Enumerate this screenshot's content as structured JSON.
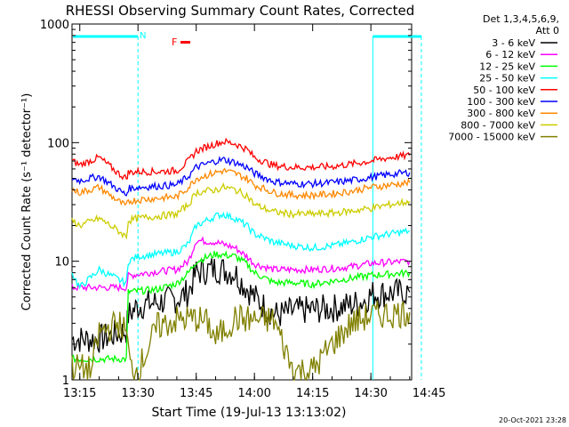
{
  "chart_data": {
    "type": "line",
    "title": "RHESSI Observing Summary Count Rates, Corrected",
    "xlabel": "Start Time (19-Jul-13 13:13:02)",
    "ylabel": "Corrected Count Rate (s⁻¹ detector⁻¹)",
    "yscale": "log",
    "ylim": [
      1,
      1000
    ],
    "xlim_minutes": [
      13.0,
      100.5
    ],
    "xticks": [
      {
        "m": 15,
        "label": "13:15"
      },
      {
        "m": 30,
        "label": "13:30"
      },
      {
        "m": 45,
        "label": "13:45"
      },
      {
        "m": 60,
        "label": "14:00"
      },
      {
        "m": 75,
        "label": "14:15"
      },
      {
        "m": 90,
        "label": "14:30"
      },
      {
        "m": 105,
        "label": "14:45"
      }
    ],
    "yticks": [
      {
        "v": 1,
        "label": "1"
      },
      {
        "v": 10,
        "label": "10"
      },
      {
        "v": 100,
        "label": "100"
      },
      {
        "v": 1000,
        "label": "1000"
      }
    ],
    "legend_header": [
      "Det 1,3,4,5,6,9,",
      "Att 0"
    ],
    "legend_position": "right",
    "series": [
      {
        "name": "3 - 6 keV",
        "color": "#000000",
        "x": [
          13,
          20,
          27,
          27.5,
          30,
          35,
          40,
          43,
          45,
          50,
          55,
          57,
          60,
          63,
          66,
          70,
          75,
          80,
          85,
          88,
          90,
          90.5,
          95,
          100
        ],
        "y": [
          2.2,
          2.2,
          2.6,
          3.5,
          4.2,
          4.5,
          4.8,
          5.5,
          8,
          8.7,
          8,
          6.5,
          5,
          4,
          3.5,
          3.8,
          3.9,
          4.0,
          4.3,
          4.6,
          5.2,
          5.3,
          5.4,
          5.5
        ]
      },
      {
        "name": "6 - 12 keV",
        "color": "#ff00ff",
        "x": [
          13,
          27,
          27.5,
          30,
          35,
          40,
          43,
          45,
          50,
          55,
          58,
          60,
          65,
          70,
          75,
          80,
          85,
          90,
          95,
          100
        ],
        "y": [
          6,
          6,
          7.5,
          7.8,
          8.2,
          8.5,
          10,
          15,
          14.5,
          13,
          11,
          9.5,
          8.5,
          8.5,
          8.5,
          8.7,
          9,
          9.6,
          9.8,
          10
        ]
      },
      {
        "name": "12 - 25 keV",
        "color": "#00ff00",
        "x": [
          13,
          20,
          27,
          27.5,
          30,
          35,
          40,
          43,
          45,
          50,
          55,
          58,
          60,
          65,
          70,
          75,
          80,
          85,
          90,
          95,
          100
        ],
        "y": [
          1.5,
          1.5,
          1.5,
          5.5,
          5.6,
          5.8,
          6.5,
          8,
          10,
          11.5,
          11,
          9.5,
          8,
          6.6,
          6.6,
          6.4,
          6.8,
          7.2,
          7.6,
          7.8,
          8
        ]
      },
      {
        "name": "25 - 50 keV",
        "color": "#00ffff",
        "x": [
          13,
          15,
          20,
          25,
          27,
          27.5,
          30,
          35,
          40,
          43,
          45,
          50,
          52,
          55,
          58,
          60,
          65,
          70,
          75,
          80,
          85,
          90,
          95,
          100
        ],
        "y": [
          8,
          6,
          8.5,
          7,
          6.5,
          10,
          11,
          11.5,
          12,
          14,
          20,
          24,
          25,
          23,
          20,
          17,
          14.5,
          13.5,
          13,
          13.5,
          14.5,
          16,
          17,
          18
        ]
      },
      {
        "name": "50 - 100 keV",
        "color": "#ff0000",
        "x": [
          13,
          15,
          20,
          25,
          27,
          27.5,
          30,
          35,
          40,
          43,
          45,
          50,
          52,
          55,
          58,
          60,
          65,
          70,
          75,
          80,
          85,
          90,
          95,
          100
        ],
        "y": [
          70,
          65,
          75,
          55,
          50,
          56,
          57,
          57,
          58,
          70,
          85,
          98,
          102,
          98,
          88,
          75,
          64,
          62,
          62,
          63,
          66,
          70,
          75,
          78
        ]
      },
      {
        "name": "100 - 300 keV",
        "color": "#0000ff",
        "x": [
          13,
          15,
          20,
          25,
          27,
          27.5,
          30,
          35,
          40,
          43,
          45,
          50,
          52,
          55,
          58,
          60,
          65,
          70,
          75,
          80,
          85,
          90,
          95,
          100
        ],
        "y": [
          50,
          48,
          52,
          40,
          36,
          41,
          42,
          43,
          44,
          52,
          62,
          70,
          72,
          68,
          62,
          55,
          47,
          45,
          45,
          46,
          48,
          51,
          54,
          56
        ]
      },
      {
        "name": "300 - 800 keV",
        "color": "#ff8800",
        "x": [
          13,
          15,
          20,
          25,
          27,
          27.5,
          30,
          35,
          40,
          43,
          45,
          50,
          52,
          55,
          58,
          60,
          65,
          70,
          75,
          80,
          85,
          90,
          95,
          100
        ],
        "y": [
          40,
          38,
          42,
          32,
          29,
          32,
          33,
          34,
          35,
          42,
          50,
          56,
          58,
          55,
          50,
          44,
          38,
          36,
          36,
          37,
          39,
          42,
          44,
          46
        ]
      },
      {
        "name": "800 - 7000 keV",
        "color": "#cccc00",
        "x": [
          13,
          15,
          20,
          25,
          27,
          27.5,
          30,
          35,
          40,
          43,
          45,
          50,
          52,
          55,
          58,
          60,
          65,
          70,
          75,
          80,
          85,
          90,
          95,
          100
        ],
        "y": [
          22,
          20,
          23,
          18,
          16,
          22,
          23,
          24,
          25,
          30,
          38,
          40,
          42,
          40,
          36,
          30,
          26,
          25,
          25,
          25.5,
          26.5,
          28,
          30,
          32
        ]
      },
      {
        "name": "7000 - 15000 keV",
        "color": "#808000",
        "x": [
          13,
          18,
          20,
          25,
          27,
          28,
          30,
          35,
          40,
          45,
          48,
          50,
          55,
          60,
          65,
          70,
          75,
          80,
          85,
          90,
          95,
          100
        ],
        "y": [
          1.3,
          1.2,
          2.5,
          3,
          2.5,
          1.3,
          1.2,
          2.8,
          3.2,
          3.3,
          3,
          2.2,
          3.3,
          3.2,
          3.2,
          1.2,
          1.2,
          2,
          3,
          3.5,
          3.6,
          3.7
        ]
      }
    ],
    "extra_lines": [
      {
        "note": "Att change and segment after 14:30, shown as separate short traces"
      }
    ],
    "flags": [
      {
        "label": "N",
        "color": "#00ffff"
      },
      {
        "label": "F",
        "color": "#ff0000"
      }
    ],
    "footer_date": "20-Oct-2021 23:28"
  }
}
